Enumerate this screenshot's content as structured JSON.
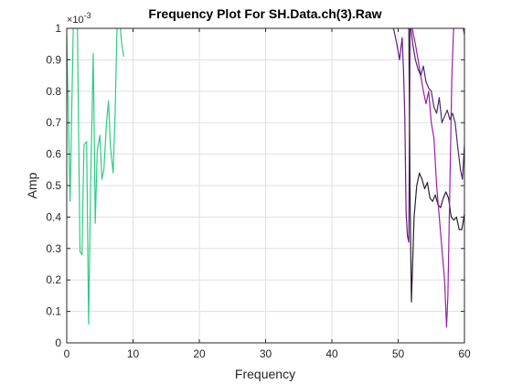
{
  "chart_data": {
    "type": "line",
    "title": "Frequency Plot For SH.Data.ch(3).Raw",
    "xlabel": "Frequency",
    "ylabel": "Amp",
    "xlim": [
      0,
      60
    ],
    "ylim": [
      0,
      0.001
    ],
    "x_ticks": [
      0,
      10,
      20,
      30,
      40,
      50,
      60
    ],
    "x_tick_labels": [
      "0",
      "10",
      "20",
      "30",
      "40",
      "50",
      "60"
    ],
    "y_ticks": [
      0,
      0.0001,
      0.0002,
      0.0003,
      0.0004,
      0.0005,
      0.0006,
      0.0007,
      0.0008,
      0.0009,
      0.001
    ],
    "y_tick_labels": [
      "0",
      "0.1",
      "0.2",
      "0.3",
      "0.4",
      "0.5",
      "0.6",
      "0.7",
      "0.8",
      "0.9",
      "1"
    ],
    "y_exponent_base": "×10",
    "y_exponent_power": "-3",
    "grid": true,
    "series": [
      {
        "color": "#2ecc85",
        "x": [
          0.0,
          0.5,
          1.0,
          1.3,
          1.6,
          2.0,
          2.3,
          2.6,
          3.0,
          3.3,
          3.6,
          4.0,
          4.3,
          4.6,
          5.0,
          5.3,
          5.6,
          6.0,
          6.3,
          6.6,
          7.0,
          7.3,
          7.6,
          8.0,
          8.3,
          8.6
        ],
        "y": [
          0.00098,
          0.00045,
          0.00102,
          0.00102,
          0.00102,
          0.00029,
          0.00028,
          0.00063,
          0.00064,
          6e-05,
          0.0005,
          0.00092,
          0.00038,
          0.00061,
          0.00066,
          0.00052,
          0.00055,
          0.0007,
          0.00077,
          0.00062,
          0.00054,
          0.00073,
          0.00102,
          0.00102,
          0.00095,
          0.00091
        ]
      },
      {
        "color": "#6a1a8c",
        "x": [
          49.0,
          49.4,
          49.8,
          50.2,
          50.6,
          50.8,
          51.0,
          51.2,
          51.4,
          51.6,
          51.8,
          52.0,
          52.2
        ],
        "y": [
          0.00102,
          0.00099,
          0.00095,
          0.0009,
          0.00097,
          0.00087,
          0.00072,
          0.00041,
          0.00034,
          0.00032,
          0.00102,
          0.00102,
          0.00102
        ]
      },
      {
        "color": "#2a1f2e",
        "x": [
          51.6,
          51.8,
          52.0,
          52.4,
          52.8,
          53.2,
          53.6,
          54.0,
          54.4,
          54.8,
          55.2,
          55.6,
          56.0,
          56.4,
          56.8,
          57.2,
          57.6,
          58.0,
          58.4,
          58.8,
          59.2,
          59.6,
          60.0
        ],
        "y": [
          0.00102,
          0.00045,
          0.00013,
          0.0004,
          0.0005,
          0.00054,
          0.00052,
          0.00049,
          0.00051,
          0.00046,
          0.00045,
          0.00047,
          0.00044,
          0.00043,
          0.00046,
          0.00048,
          0.00046,
          0.0004,
          0.00039,
          0.0004,
          0.00036,
          0.00036,
          0.00041
        ]
      },
      {
        "color": "#9b1fa8",
        "x": [
          52.0,
          52.3,
          52.6,
          53.0,
          53.4,
          53.8,
          54.2,
          54.6,
          55.0,
          55.4,
          55.8,
          56.2,
          56.6,
          57.0,
          57.3,
          57.5,
          57.8,
          58.1,
          58.4,
          58.7,
          59.0,
          59.3,
          59.6,
          60.0
        ],
        "y": [
          0.00102,
          0.00098,
          0.00095,
          0.0009,
          0.00085,
          0.0008,
          0.00076,
          0.0008,
          0.0007,
          0.00065,
          0.0005,
          0.0004,
          0.0003,
          0.0002,
          5e-05,
          0.00015,
          0.0005,
          0.00085,
          0.00102,
          0.00102,
          0.00102,
          0.00102,
          0.00102,
          0.00098
        ]
      },
      {
        "color": "#4a2a6a",
        "x": [
          51.8,
          52.2,
          52.6,
          53.0,
          53.4,
          53.8,
          54.2,
          54.6,
          55.0,
          55.4,
          55.8,
          56.2,
          56.6,
          57.0,
          57.4,
          57.8,
          58.2,
          58.6,
          59.0,
          59.4,
          59.7,
          60.0
        ],
        "y": [
          0.00102,
          0.00095,
          0.0009,
          0.00087,
          0.00085,
          0.00088,
          0.00083,
          0.00081,
          0.0008,
          0.00075,
          0.00073,
          0.00078,
          0.0007,
          0.00072,
          0.00074,
          0.00071,
          0.00073,
          0.0007,
          0.00062,
          0.00055,
          0.00052,
          0.00063
        ]
      }
    ]
  }
}
